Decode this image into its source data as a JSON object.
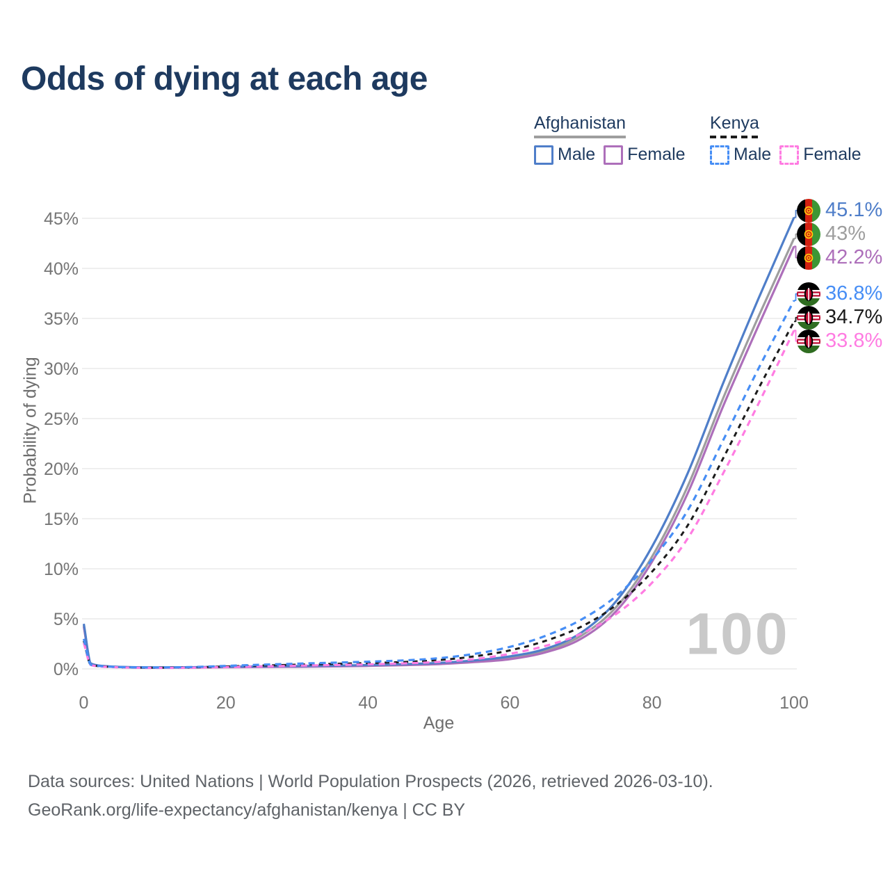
{
  "title": "Odds of dying at each age",
  "watermark": "100",
  "legend": {
    "groups": [
      {
        "label": "Afghanistan",
        "underline_style": "solid",
        "underline_color": "#9e9e9e",
        "items": [
          {
            "label": "Male",
            "color": "#4f7ec9",
            "dashed": false
          },
          {
            "label": "Female",
            "color": "#ad6fba",
            "dashed": false
          }
        ]
      },
      {
        "label": "Kenya",
        "underline_style": "dashed",
        "underline_color": "#1b1b1b",
        "items": [
          {
            "label": "Male",
            "color": "#478ef5",
            "dashed": true
          },
          {
            "label": "Female",
            "color": "#ff7ce2",
            "dashed": true
          }
        ]
      }
    ]
  },
  "footer": {
    "line1": "Data sources: United Nations | World Population Prospects (2026, retrieved 2026-03-10).",
    "line2": "GeoRank.org/life-expectancy/afghanistan/kenya | CC BY"
  },
  "chart_data": {
    "type": "line",
    "title": "Odds of dying at each age",
    "xlabel": "Age",
    "ylabel": "Probability of dying",
    "y_unit": "percent",
    "xlim": [
      0,
      100
    ],
    "ylim": [
      0,
      46
    ],
    "grid": "horizontal",
    "legend_position": "top-right",
    "xticks": [
      0,
      20,
      40,
      60,
      80,
      100
    ],
    "yticks": [
      {
        "v": 0,
        "label": "0%"
      },
      {
        "v": 5,
        "label": "5%"
      },
      {
        "v": 10,
        "label": "10%"
      },
      {
        "v": 15,
        "label": "15%"
      },
      {
        "v": 20,
        "label": "20%"
      },
      {
        "v": 25,
        "label": "25%"
      },
      {
        "v": 30,
        "label": "30%"
      },
      {
        "v": 35,
        "label": "35%"
      },
      {
        "v": 40,
        "label": "40%"
      },
      {
        "v": 45,
        "label": "45%"
      }
    ],
    "x": [
      0,
      1,
      2,
      3,
      5,
      10,
      15,
      20,
      25,
      30,
      35,
      40,
      45,
      50,
      55,
      60,
      65,
      70,
      75,
      80,
      85,
      90,
      95,
      100
    ],
    "series": [
      {
        "name": "Afghanistan — Male",
        "country": "Afghanistan",
        "sex": "Male",
        "color": "#4f7ec9",
        "dash": false,
        "flag_icon": "afghanistan-flag",
        "end_label": "45.1%",
        "end_value": 45.1,
        "values": [
          4.5,
          0.55,
          0.35,
          0.28,
          0.2,
          0.15,
          0.17,
          0.22,
          0.25,
          0.28,
          0.32,
          0.38,
          0.47,
          0.6,
          0.85,
          1.25,
          2.0,
          3.6,
          6.8,
          12.2,
          19.5,
          28.5,
          37.0,
          45.1
        ]
      },
      {
        "name": "Afghanistan — Both sexes",
        "country": "Afghanistan",
        "sex": "Both",
        "color": "#9e9e9e",
        "dash": false,
        "flag_icon": "afghanistan-flag",
        "end_label": "43%",
        "end_value": 43,
        "values": [
          4.35,
          0.52,
          0.33,
          0.26,
          0.19,
          0.14,
          0.15,
          0.19,
          0.22,
          0.25,
          0.29,
          0.34,
          0.42,
          0.54,
          0.76,
          1.1,
          1.8,
          3.3,
          6.2,
          11.2,
          18.2,
          27.0,
          35.2,
          43.0
        ]
      },
      {
        "name": "Afghanistan — Female",
        "country": "Afghanistan",
        "sex": "Female",
        "color": "#ad6fba",
        "dash": false,
        "flag_icon": "afghanistan-flag",
        "end_label": "42.2%",
        "end_value": 42.2,
        "values": [
          4.2,
          0.5,
          0.32,
          0.25,
          0.18,
          0.12,
          0.13,
          0.16,
          0.19,
          0.21,
          0.25,
          0.3,
          0.37,
          0.48,
          0.68,
          0.97,
          1.65,
          3.0,
          5.8,
          10.7,
          17.5,
          26.2,
          34.3,
          42.2
        ]
      },
      {
        "name": "Kenya — Male",
        "country": "Kenya",
        "sex": "Male",
        "color": "#478ef5",
        "dash": true,
        "flag_icon": "kenya-flag",
        "end_label": "36.8%",
        "end_value": 36.8,
        "values": [
          3.0,
          0.42,
          0.3,
          0.25,
          0.18,
          0.14,
          0.18,
          0.3,
          0.42,
          0.52,
          0.62,
          0.72,
          0.85,
          1.07,
          1.5,
          2.2,
          3.3,
          4.9,
          7.3,
          10.9,
          15.8,
          22.8,
          30.0,
          36.8
        ]
      },
      {
        "name": "Kenya — Both sexes",
        "country": "Kenya",
        "sex": "Both",
        "color": "#1b1b1b",
        "dash": true,
        "flag_icon": "kenya-flag",
        "end_label": "34.7%",
        "end_value": 34.7,
        "values": [
          2.8,
          0.4,
          0.28,
          0.23,
          0.16,
          0.12,
          0.15,
          0.24,
          0.33,
          0.42,
          0.5,
          0.58,
          0.69,
          0.88,
          1.25,
          1.85,
          2.8,
          4.2,
          6.4,
          9.7,
          14.3,
          21.0,
          28.0,
          34.7
        ]
      },
      {
        "name": "Kenya — Female",
        "country": "Kenya",
        "sex": "Female",
        "color": "#ff7ce2",
        "dash": true,
        "flag_icon": "kenya-flag",
        "end_label": "33.8%",
        "end_value": 33.8,
        "values": [
          2.6,
          0.38,
          0.26,
          0.21,
          0.15,
          0.1,
          0.12,
          0.18,
          0.25,
          0.32,
          0.38,
          0.45,
          0.55,
          0.7,
          0.98,
          1.5,
          2.3,
          3.5,
          5.5,
          8.6,
          13.0,
          19.5,
          26.5,
          33.8
        ]
      }
    ]
  }
}
